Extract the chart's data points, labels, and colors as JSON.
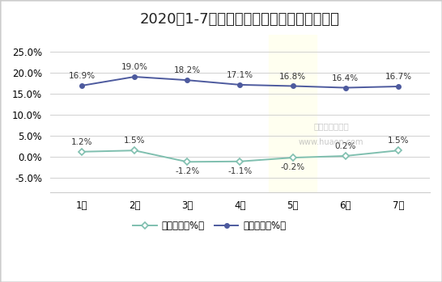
{
  "title": "2020年1-7月活牛（中等）集贸市场价格增速",
  "categories": [
    "1月",
    "2月",
    "3月",
    "4月",
    "5月",
    "6月",
    "7月"
  ],
  "huanbi": [
    1.2,
    1.5,
    -1.2,
    -1.1,
    -0.2,
    0.2,
    1.5
  ],
  "tongbi": [
    16.9,
    19.0,
    18.2,
    17.1,
    16.8,
    16.4,
    16.7
  ],
  "huanbi_labels": [
    "1.2%",
    "1.5%",
    "-1.2%",
    "-1.1%",
    "-0.2%",
    "0.2%",
    "1.5%"
  ],
  "tongbi_labels": [
    "16.9%",
    "19.0%",
    "18.2%",
    "17.1%",
    "16.8%",
    "16.4%",
    "16.7%"
  ],
  "huanbi_color": "#7fbfaf",
  "tongbi_color": "#4d5a9e",
  "highlight_month": 4,
  "highlight_color": "#fffff0",
  "ylim": [
    -8.5,
    29
  ],
  "yticks": [
    -5.0,
    0.0,
    5.0,
    10.0,
    15.0,
    20.0,
    25.0
  ],
  "ytick_labels": [
    "-5.0%",
    "0.0%",
    "5.0%",
    "10.0%",
    "15.0%",
    "20.0%",
    "25.0%"
  ],
  "legend_huanbi": "环比增长（%）",
  "legend_tongbi": "同比增长（%）",
  "watermark_line1": "华经产业研究院",
  "watermark_line2": "www.huaon.com",
  "background_color": "#ffffff",
  "border_color": "#cccccc",
  "title_fontsize": 13,
  "label_fontsize": 7.5,
  "tick_fontsize": 8.5,
  "legend_fontsize": 8.5
}
